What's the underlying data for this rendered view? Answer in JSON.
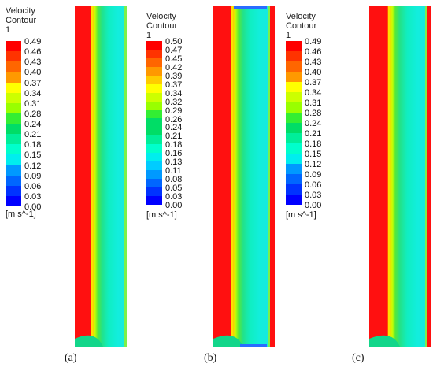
{
  "panels": [
    {
      "legend": {
        "title": "Velocity\nContour 1",
        "ticks": [
          "0.49",
          "0.46",
          "0.43",
          "0.40",
          "0.37",
          "0.34",
          "0.31",
          "0.28",
          "0.24",
          "0.21",
          "0.18",
          "0.15",
          "0.12",
          "0.09",
          "0.06",
          "0.03",
          "0.00"
        ],
        "unit": "[m s^-1]"
      },
      "caption": "(a)"
    },
    {
      "legend": {
        "title": "Velocity\nContour 1",
        "ticks": [
          "0.50",
          "0.47",
          "0.45",
          "0.42",
          "0.39",
          "0.37",
          "0.34",
          "0.32",
          "0.29",
          "0.26",
          "0.24",
          "0.21",
          "0.18",
          "0.16",
          "0.13",
          "0.11",
          "0.08",
          "0.05",
          "0.03",
          "0.00"
        ],
        "unit": "[m s^-1]"
      },
      "caption": "(b)"
    },
    {
      "legend": {
        "title": "Velocity\nContour 1",
        "ticks": [
          "0.49",
          "0.46",
          "0.43",
          "0.40",
          "0.37",
          "0.34",
          "0.31",
          "0.28",
          "0.24",
          "0.21",
          "0.18",
          "0.15",
          "0.12",
          "0.09",
          "0.06",
          "0.03",
          "0.00"
        ],
        "unit": "[m s^-1]"
      },
      "caption": "(c)"
    }
  ],
  "colormap": [
    "#ff0000",
    "#ff3300",
    "#ff6600",
    "#ff9900",
    "#ffcc00",
    "#ffff00",
    "#ccff00",
    "#99ff00",
    "#33ee33",
    "#00dd66",
    "#00ee99",
    "#00ffcc",
    "#00eeee",
    "#00ccff",
    "#0099ff",
    "#0066ff",
    "#0033ff",
    "#0000ff"
  ]
}
